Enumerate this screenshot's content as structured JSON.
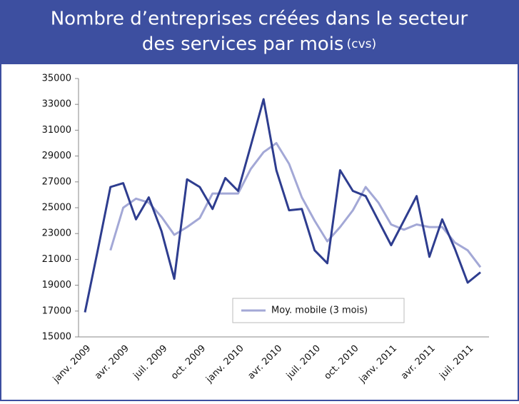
{
  "chart_data": {
    "type": "line",
    "title_lines": [
      "Nombre d’entreprises créées dans le secteur",
      "des services par mois"
    ],
    "title_note": "(cvs)",
    "categories": [
      "janv. 2009",
      null,
      null,
      "avr. 2009",
      null,
      null,
      "juil. 2009",
      null,
      null,
      "oct. 2009",
      null,
      null,
      "janv. 2010",
      null,
      null,
      "avr. 2010",
      null,
      null,
      "juil. 2010",
      null,
      null,
      "oct. 2010",
      null,
      null,
      "janv. 2011",
      null,
      null,
      "avr. 2011",
      null,
      null,
      "juil. 2011",
      null
    ],
    "series": [
      {
        "color": "#2e3d8f",
        "values": [
          16900,
          21700,
          26600,
          26900,
          24100,
          25800,
          23200,
          19500,
          27200,
          26600,
          24900,
          27300,
          26300,
          29800,
          33400,
          27900,
          24800,
          24900,
          21700,
          20700,
          27900,
          26300,
          25900,
          24000,
          22100,
          24000,
          25900,
          21200,
          24100,
          21800,
          19200,
          20000
        ]
      },
      {
        "name": "Moy. mobile (3 mois)",
        "color": "#a3a8d6",
        "values": [
          null,
          null,
          21700,
          25000,
          25700,
          25400,
          24300,
          22900,
          23500,
          24200,
          26100,
          26100,
          26100,
          28000,
          29300,
          30000,
          28400,
          25800,
          24000,
          22400,
          23500,
          24800,
          26600,
          25400,
          23700,
          23300,
          23700,
          23500,
          23500,
          22300,
          21700,
          20400
        ]
      }
    ],
    "ylim": [
      15000,
      35000
    ],
    "yticks": [
      15000,
      17000,
      19000,
      21000,
      23000,
      25000,
      27000,
      29000,
      31000,
      33000,
      35000
    ]
  }
}
